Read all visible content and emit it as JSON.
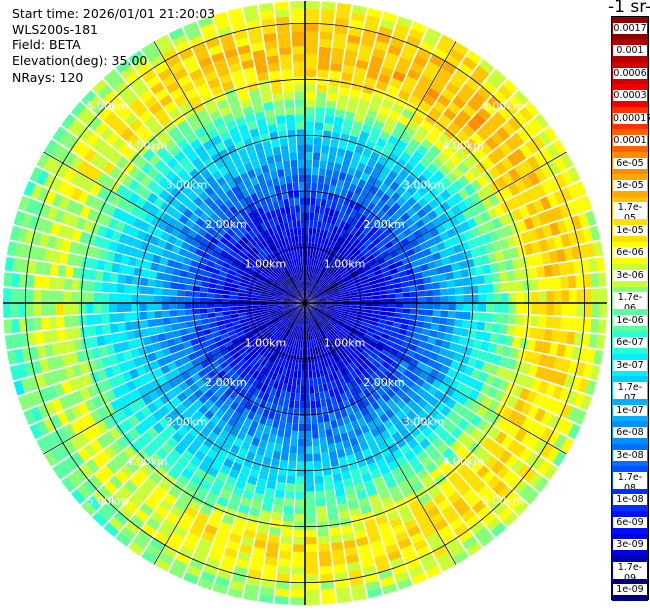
{
  "header": {
    "start_time": "Start time: 2026/01/01 21:20:03",
    "instrument": "WLS200s-181",
    "field": "Field: BETA",
    "elevation": "Elevation(deg): 35.00",
    "nrays": "NRays: 120"
  },
  "colorbar": {
    "title": "-1 sr-",
    "labels": [
      "0.0017",
      "0.001",
      "0.0006",
      "0.0003",
      "0.00017",
      "0.0001",
      "6e-05",
      "3e-05",
      "1.7e-05",
      "1e-05",
      "6e-06",
      "3e-06",
      "1.7e-06",
      "1e-06",
      "6e-07",
      "3e-07",
      "1.7e-07",
      "1e-07",
      "6e-08",
      "3e-08",
      "1.7e-08",
      "1e-08",
      "6e-09",
      "3e-09",
      "1.7e-09",
      "1e-09"
    ],
    "colors": [
      "#8b0000",
      "#b00000",
      "#d40000",
      "#f00000",
      "#ff3000",
      "#ff6000",
      "#ff8c00",
      "#ffa800",
      "#ffc400",
      "#ffe000",
      "#ffff00",
      "#c8ff38",
      "#88ff78",
      "#5cffa0",
      "#28ffd4",
      "#00f0ff",
      "#00d0ff",
      "#00b0ff",
      "#0090ff",
      "#0070ff",
      "#0050ff",
      "#0030ff",
      "#0010ff",
      "#0000e0",
      "#0000b0",
      "#000080"
    ]
  },
  "chart_data": {
    "type": "heatmap",
    "title": "",
    "projection": "polar",
    "field": "BETA",
    "elevation_deg": 35.0,
    "n_rays": 120,
    "range_rings_km": [
      1,
      2,
      3,
      4,
      5
    ],
    "ring_labels": [
      "1.00km",
      "2.00km",
      "3.00km",
      "4.00km",
      "5.00km"
    ],
    "max_range_km": 5.4,
    "radial_profile": [
      {
        "range_km": 0.0,
        "value": 1e-09
      },
      {
        "range_km": 1.0,
        "value": 3e-09
      },
      {
        "range_km": 1.8,
        "value": 1e-08
      },
      {
        "range_km": 2.5,
        "value": 6e-08
      },
      {
        "range_km": 3.2,
        "value": 3e-07
      },
      {
        "range_km": 3.8,
        "value": 1.7e-06
      },
      {
        "range_km": 4.4,
        "value": 1e-05
      },
      {
        "range_km": 4.9,
        "value": 6e-06
      },
      {
        "range_km": 5.4,
        "value": 1.7e-06
      }
    ],
    "colorscale": "log",
    "value_range": [
      1e-09,
      0.0017
    ]
  }
}
